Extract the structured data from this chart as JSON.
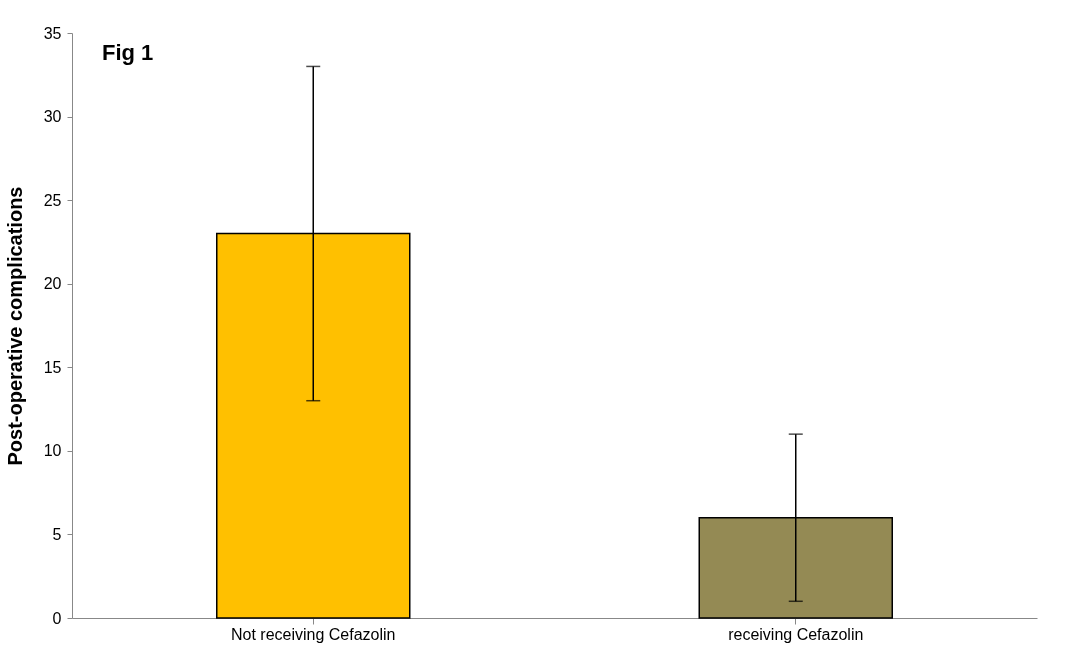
{
  "chart_data": {
    "type": "bar",
    "title": "Fig 1",
    "ylabel": "Post-operative complications",
    "categories": [
      "Not receiving Cefazolin",
      "receiving Cefazolin"
    ],
    "values": [
      23,
      6
    ],
    "errors": [
      10,
      5
    ],
    "colors": [
      "#ffc000",
      "#948a54"
    ],
    "ylim": [
      0,
      35
    ],
    "yticks": [
      0,
      5,
      10,
      15,
      20,
      25,
      30,
      35
    ],
    "grid": false
  }
}
